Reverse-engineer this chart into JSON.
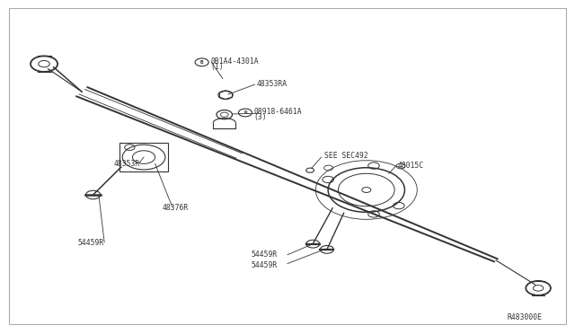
{
  "bg_color": "#ffffff",
  "border_color": "#aaaaaa",
  "line_color": "#333333",
  "fig_width": 6.4,
  "fig_height": 3.72,
  "dpi": 100,
  "label_B_circle": "B",
  "label_B_part": "0B1A4-4301A",
  "label_B_qty": "(1)",
  "label_48353RA": "48353RA",
  "label_N_circle": "N",
  "label_N_part": "08918-6461A",
  "label_N_qty": "(3)",
  "label_sec": "SEE SEC492",
  "label_48353R": "48353R",
  "label_48015C": "48015C",
  "label_48376R": "48376R",
  "label_54459R_left": "54459R",
  "label_54459R_bot1": "54459R",
  "label_54459R_bot2": "54459R",
  "label_ref": "R483000E"
}
